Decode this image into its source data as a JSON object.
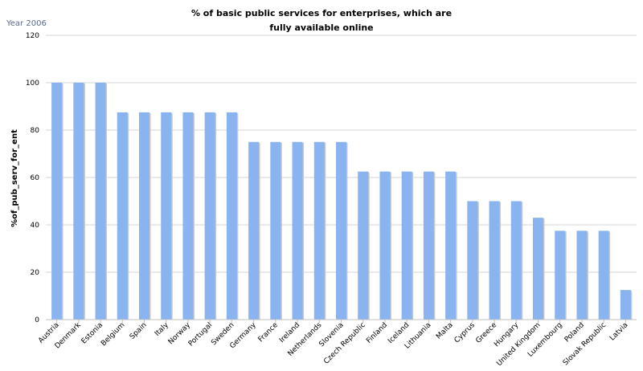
{
  "chart_data": {
    "type": "bar",
    "title_lines": [
      "% of basic public services for enterprises, which are",
      "fully available online"
    ],
    "subtitle": "Year 2006",
    "ylabel": "%of_pub_serv_for_ent",
    "xlabel": "",
    "ylim": [
      0,
      120
    ],
    "yticks": [
      0,
      20,
      40,
      60,
      80,
      100,
      120
    ],
    "grid": true,
    "bar_color": "#8ab4f0",
    "categories": [
      "Austria",
      "Denmark",
      "Estonia",
      "Belgium",
      "Spain",
      "Italy",
      "Norway",
      "Portugal",
      "Sweden",
      "Germany",
      "France",
      "Ireland",
      "Netherlands",
      "Slovenia",
      "Czech Republic",
      "Finland",
      "Iceland",
      "Lithuania",
      "Malta",
      "Cyprus",
      "Greece",
      "Hungary",
      "United Kingdom",
      "Luxembourg",
      "Poland",
      "Slovak Republic",
      "Latvia"
    ],
    "values": [
      100,
      100,
      100,
      87.5,
      87.5,
      87.5,
      87.5,
      87.5,
      87.5,
      75,
      75,
      75,
      75,
      75,
      62.5,
      62.5,
      62.5,
      62.5,
      62.5,
      50,
      50,
      50,
      43,
      37.5,
      37.5,
      37.5,
      12.5
    ]
  }
}
